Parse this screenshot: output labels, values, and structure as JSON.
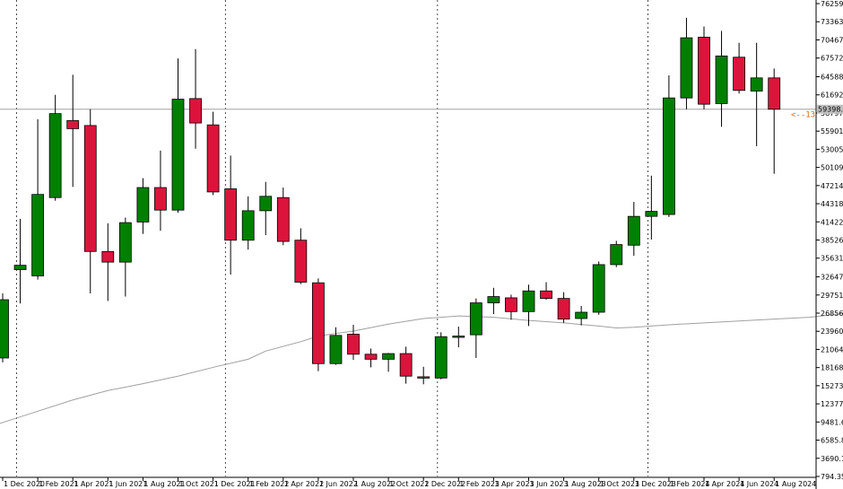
{
  "chart_data": {
    "type": "candlestick",
    "colors": {
      "up": "#008000",
      "down": "#dc143c",
      "wick": "#000000",
      "ma": "#a0a0a0",
      "current_line": "#a0a0a0",
      "marker": "#d2691e",
      "grid_dash": "#000000"
    },
    "y_range": [
      794.35,
      76259.35
    ],
    "y_ticks": [
      "76259.35",
      "73363.60",
      "70467.85",
      "67572.10",
      "64588.60",
      "61692.85",
      "58797.10",
      "55901.35",
      "53005.60",
      "50109.85",
      "47214.10",
      "44318.35",
      "41422.60",
      "38526.85",
      "35631.10",
      "32647.60",
      "29751.85",
      "26856.10",
      "23960.35",
      "21064.60",
      "18168.85",
      "15273.10",
      "12377.35",
      "9481.60",
      "6585.85",
      "3690.10",
      "794.35"
    ],
    "current_price": 59398.84,
    "current_price_label": "59398.84",
    "marker_label": "<--13",
    "x_labels": [
      "1 Dec 2020",
      "1 Feb 2021",
      "1 Apr 2021",
      "1 Jun 2021",
      "1 Aug 2021",
      "1 Oct 2021",
      "1 Dec 2021",
      "1 Feb 2022",
      "1 Apr 2022",
      "1 Jun 2022",
      "1 Aug 2022",
      "1 Oct 2022",
      "1 Dec 2022",
      "1 Feb 2023",
      "1 Apr 2023",
      "1 Jun 2023",
      "1 Aug 2023",
      "1 Oct 2023",
      "1 Dec 2023",
      "1 Feb 2024",
      "1 Apr 2024",
      "1 Jun 2024",
      "1 Aug 2024"
    ],
    "candles": [
      {
        "o": 19700,
        "h": 30000,
        "l": 19000,
        "c": 29000
      },
      {
        "o": 33800,
        "h": 41900,
        "l": 28400,
        "c": 34500
      },
      {
        "o": 32800,
        "h": 57800,
        "l": 32200,
        "c": 45800
      },
      {
        "o": 45300,
        "h": 61700,
        "l": 44800,
        "c": 58700
      },
      {
        "o": 57600,
        "h": 64900,
        "l": 47000,
        "c": 56300
      },
      {
        "o": 56800,
        "h": 59400,
        "l": 30000,
        "c": 36700
      },
      {
        "o": 36700,
        "h": 41200,
        "l": 28800,
        "c": 35000
      },
      {
        "o": 35000,
        "h": 42100,
        "l": 29500,
        "c": 41300
      },
      {
        "o": 41400,
        "h": 48400,
        "l": 39500,
        "c": 46900
      },
      {
        "o": 46900,
        "h": 52800,
        "l": 40000,
        "c": 43300
      },
      {
        "o": 43300,
        "h": 67500,
        "l": 42900,
        "c": 61000
      },
      {
        "o": 61100,
        "h": 69000,
        "l": 53100,
        "c": 57200
      },
      {
        "o": 56900,
        "h": 59000,
        "l": 45700,
        "c": 46200
      },
      {
        "o": 46700,
        "h": 52000,
        "l": 33000,
        "c": 38500
      },
      {
        "o": 38500,
        "h": 45500,
        "l": 37000,
        "c": 43200
      },
      {
        "o": 43200,
        "h": 47800,
        "l": 39300,
        "c": 45500
      },
      {
        "o": 45300,
        "h": 46900,
        "l": 37700,
        "c": 38300
      },
      {
        "o": 38500,
        "h": 40400,
        "l": 31500,
        "c": 31800
      },
      {
        "o": 31700,
        "h": 32400,
        "l": 17600,
        "c": 18800
      },
      {
        "o": 18800,
        "h": 24600,
        "l": 18600,
        "c": 23300
      },
      {
        "o": 23500,
        "h": 25000,
        "l": 19400,
        "c": 20300
      },
      {
        "o": 20300,
        "h": 21200,
        "l": 18200,
        "c": 19500
      },
      {
        "o": 19500,
        "h": 20500,
        "l": 17500,
        "c": 20400
      },
      {
        "o": 20400,
        "h": 21500,
        "l": 15600,
        "c": 16800
      },
      {
        "o": 16700,
        "h": 18300,
        "l": 15500,
        "c": 16500
      },
      {
        "o": 16500,
        "h": 23800,
        "l": 16300,
        "c": 23100
      },
      {
        "o": 23000,
        "h": 24700,
        "l": 21400,
        "c": 23200
      },
      {
        "o": 23400,
        "h": 29200,
        "l": 19700,
        "c": 28500
      },
      {
        "o": 28500,
        "h": 30900,
        "l": 26700,
        "c": 29500
      },
      {
        "o": 29300,
        "h": 29800,
        "l": 25800,
        "c": 27100
      },
      {
        "o": 27100,
        "h": 31400,
        "l": 24800,
        "c": 30400
      },
      {
        "o": 30400,
        "h": 31800,
        "l": 29000,
        "c": 29200
      },
      {
        "o": 29200,
        "h": 30200,
        "l": 25300,
        "c": 25900
      },
      {
        "o": 26000,
        "h": 28000,
        "l": 24900,
        "c": 27000
      },
      {
        "o": 27000,
        "h": 35100,
        "l": 26600,
        "c": 34600
      },
      {
        "o": 34600,
        "h": 38400,
        "l": 34200,
        "c": 37800
      },
      {
        "o": 37700,
        "h": 44600,
        "l": 36000,
        "c": 42300
      },
      {
        "o": 42300,
        "h": 48800,
        "l": 38600,
        "c": 43100
      },
      {
        "o": 42600,
        "h": 64800,
        "l": 42200,
        "c": 61200
      },
      {
        "o": 61200,
        "h": 74000,
        "l": 59400,
        "c": 70800
      },
      {
        "o": 70900,
        "h": 72600,
        "l": 59400,
        "c": 60200
      },
      {
        "o": 60300,
        "h": 71900,
        "l": 56600,
        "c": 67900
      },
      {
        "o": 67700,
        "h": 70000,
        "l": 61900,
        "c": 62400
      },
      {
        "o": 62300,
        "h": 70000,
        "l": 53500,
        "c": 64400
      },
      {
        "o": 64400,
        "h": 65900,
        "l": 49100,
        "c": 59398.84
      }
    ],
    "ma": [
      [
        -1,
        8500
      ],
      [
        2,
        11200
      ],
      [
        4,
        13000
      ],
      [
        6,
        14500
      ],
      [
        8,
        15600
      ],
      [
        10,
        16800
      ],
      [
        12,
        18200
      ],
      [
        14,
        19500
      ],
      [
        15,
        20800
      ],
      [
        17,
        22300
      ],
      [
        18,
        23200
      ],
      [
        20,
        24000
      ],
      [
        22,
        25100
      ],
      [
        24,
        26000
      ],
      [
        26,
        26400
      ],
      [
        28,
        26200
      ],
      [
        30,
        25700
      ],
      [
        32,
        25300
      ],
      [
        34,
        24800
      ],
      [
        35,
        24500
      ],
      [
        36,
        24600
      ],
      [
        38,
        25000
      ],
      [
        40,
        25300
      ],
      [
        42,
        25600
      ],
      [
        44,
        25900
      ],
      [
        46,
        26200
      ],
      [
        48,
        26800
      ],
      [
        50,
        27500
      ],
      [
        52,
        28400
      ],
      [
        54,
        30000
      ],
      [
        56,
        31500
      ],
      [
        58,
        32700
      ],
      [
        60,
        34000
      ],
      [
        62,
        35100
      ],
      [
        64,
        36200
      ]
    ],
    "candle_slots": [
      0,
      1,
      2,
      3,
      4,
      5,
      6,
      7,
      8,
      9,
      10,
      11,
      12,
      13,
      14,
      15,
      16,
      17,
      18,
      19,
      20,
      21,
      22,
      23,
      24,
      25,
      26,
      27,
      28,
      29,
      30,
      31,
      32,
      33,
      34,
      35,
      36,
      37,
      38,
      39,
      40,
      41,
      42,
      43,
      44
    ]
  }
}
